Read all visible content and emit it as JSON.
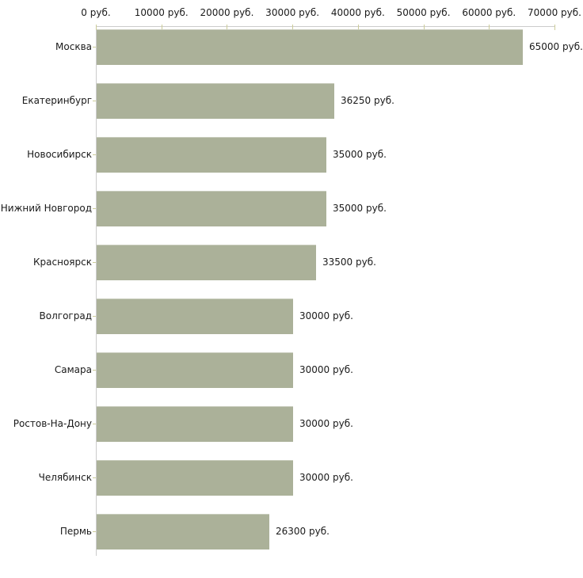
{
  "chart_data": {
    "type": "bar",
    "orientation": "horizontal",
    "title": "",
    "xlabel": "",
    "ylabel": "",
    "xlim": [
      0,
      70000
    ],
    "grid": false,
    "legend": "none",
    "categories": [
      "Москва",
      "Екатеринбург",
      "Новосибирск",
      "Нижний Новгород",
      "Красноярск",
      "Волгоград",
      "Самара",
      "Ростов-На-Дону",
      "Челябинск",
      "Пермь"
    ],
    "values": [
      65000,
      36250,
      35000,
      35000,
      33500,
      30000,
      30000,
      30000,
      30000,
      26300
    ],
    "value_labels": [
      "65000 руб.",
      "36250 руб.",
      "35000 руб.",
      "35000 руб.",
      "33500 руб.",
      "30000 руб.",
      "30000 руб.",
      "30000 руб.",
      "30000 руб.",
      "26300 руб."
    ],
    "x_tick_values": [
      0,
      10000,
      20000,
      30000,
      40000,
      50000,
      60000,
      70000
    ],
    "x_tick_labels": [
      "0 руб.",
      "10000 руб.",
      "20000 руб.",
      "30000 руб.",
      "40000 руб.",
      "50000 руб.",
      "60000 руб.",
      "70000 руб."
    ],
    "unit": "руб.",
    "bar_color": "#abb199",
    "axis_color": "#cccccc",
    "tick_color": "#cccc99",
    "text_color": "#1a1a1a"
  }
}
